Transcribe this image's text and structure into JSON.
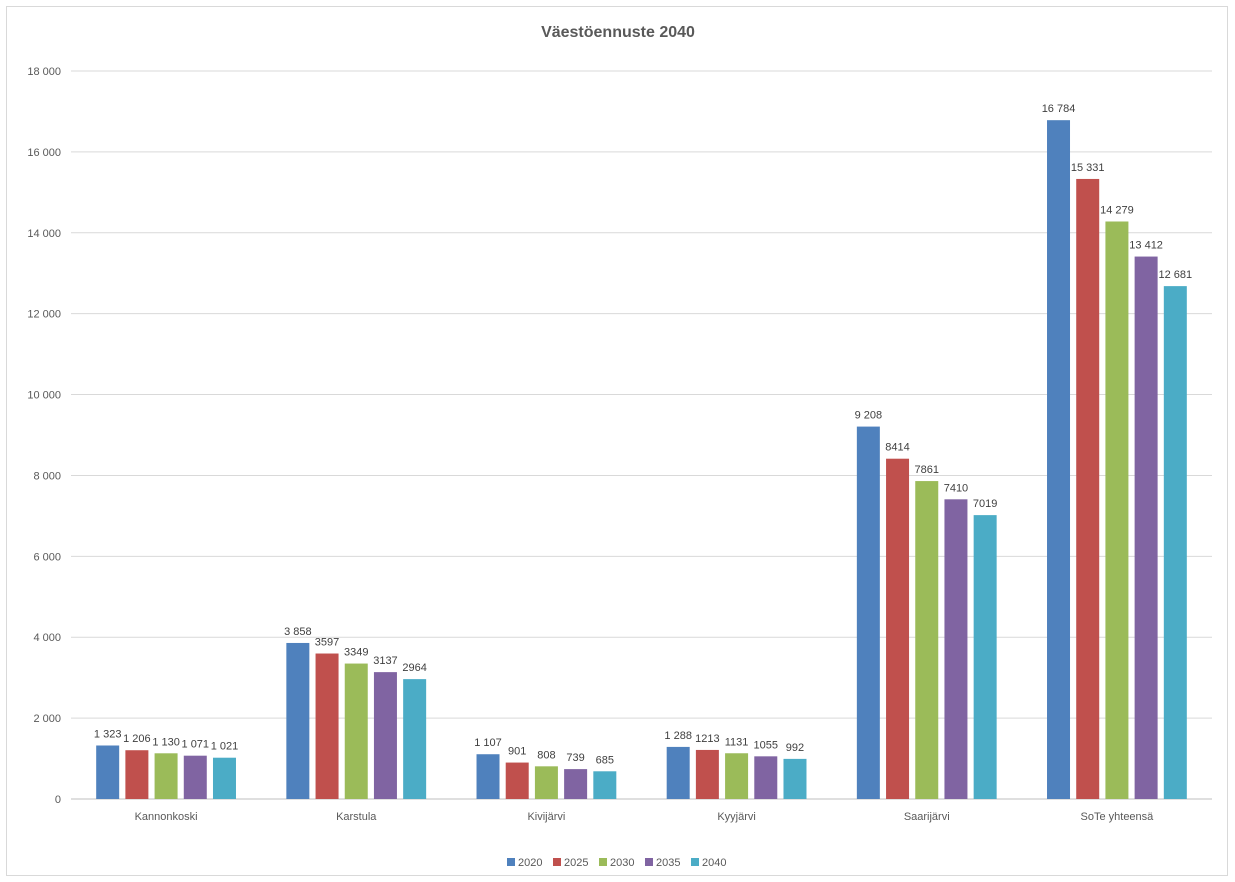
{
  "chart_data": {
    "type": "bar",
    "title": "Väestöennuste 2040",
    "xlabel": "",
    "ylabel": "",
    "categories": [
      "Kannonkoski",
      "Karstula",
      "Kivijärvi",
      "Kyyjärvi",
      "Saarijärvi",
      "SoTe yhteensä"
    ],
    "ylim": [
      0,
      18000
    ],
    "yticks": [
      0,
      2000,
      4000,
      6000,
      8000,
      10000,
      12000,
      14000,
      16000,
      18000
    ],
    "ytick_labels": [
      "0",
      "2 000",
      "4 000",
      "6 000",
      "8 000",
      "10 000",
      "12 000",
      "14 000",
      "16 000",
      "18 000"
    ],
    "grid": true,
    "legend_position": "bottom",
    "series": [
      {
        "name": "2020",
        "color": "#4f81bd",
        "values": [
          1323,
          3858,
          1107,
          1288,
          9208,
          16784
        ],
        "labels": [
          "1 323",
          "3 858",
          "1 107",
          "1 288",
          "9 208",
          "16 784"
        ]
      },
      {
        "name": "2025",
        "color": "#c0504d",
        "values": [
          1206,
          3597,
          901,
          1213,
          8414,
          15331
        ],
        "labels": [
          "1 206",
          "3597",
          "901",
          "1213",
          "8414",
          "15 331"
        ]
      },
      {
        "name": "2030",
        "color": "#9bbb59",
        "values": [
          1130,
          3349,
          808,
          1131,
          7861,
          14279
        ],
        "labels": [
          "1 130",
          "3349",
          "808",
          "1131",
          "7861",
          "14 279"
        ]
      },
      {
        "name": "2035",
        "color": "#8064a2",
        "values": [
          1071,
          3137,
          739,
          1055,
          7410,
          13412
        ],
        "labels": [
          "1 071",
          "3137",
          "739",
          "1055",
          "7410",
          "13 412"
        ]
      },
      {
        "name": "2040",
        "color": "#4bacc6",
        "values": [
          1021,
          2964,
          685,
          992,
          7019,
          12681
        ],
        "labels": [
          "1 021",
          "2964",
          "685",
          "992",
          "7019",
          "12 681"
        ]
      }
    ]
  }
}
